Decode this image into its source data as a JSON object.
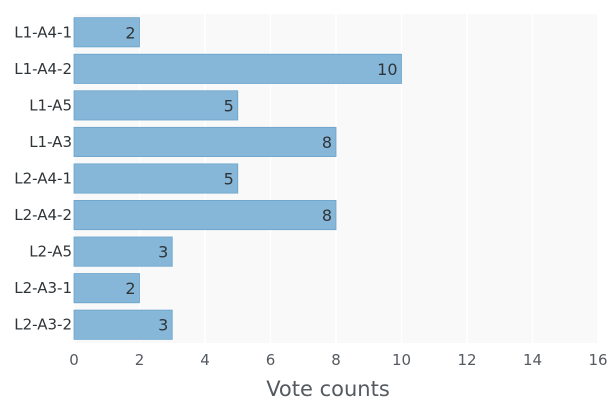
{
  "chart_data": {
    "type": "bar",
    "orientation": "horizontal",
    "categories": [
      "L1-A4-1",
      "L1-A4-2",
      "L1-A5",
      "L1-A3",
      "L2-A4-1",
      "L2-A4-2",
      "L2-A5",
      "L2-A3-1",
      "L2-A3-2"
    ],
    "values": [
      2,
      10,
      5,
      8,
      5,
      8,
      3,
      2,
      3
    ],
    "title": "",
    "xlabel": "Vote counts",
    "ylabel": "",
    "xlim": [
      0,
      16
    ],
    "xticks": [
      0,
      2,
      4,
      6,
      8,
      10,
      12,
      14,
      16
    ],
    "grid": true,
    "legend": "none",
    "colors": {
      "bar": "#87b7d8",
      "bar_edge": "#6aa3cb",
      "plot_background": "#f9f9f9",
      "grid": "#ffffff"
    }
  }
}
